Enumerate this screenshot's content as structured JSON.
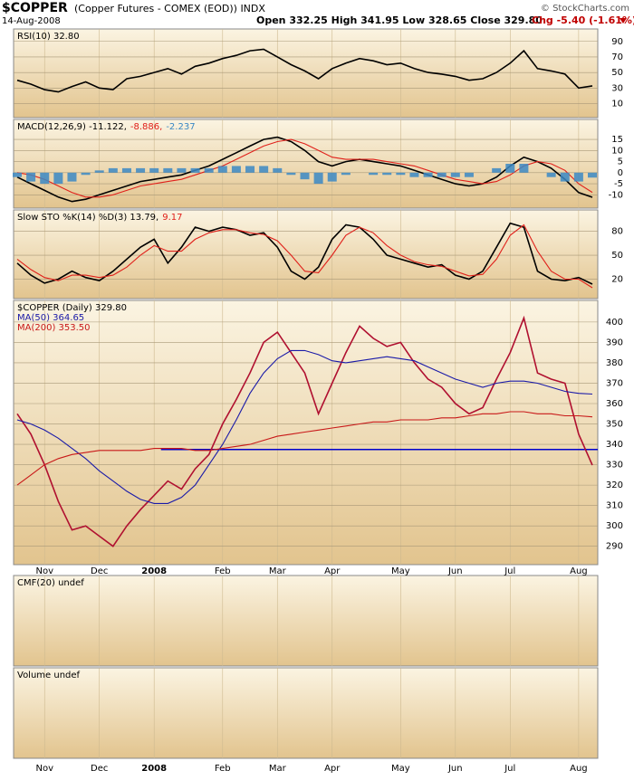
{
  "header": {
    "symbol": "$COPPER",
    "description": "(Copper Futures - COMEX (EOD)) INDX",
    "date": "14-Aug-2008",
    "credit": "© StockCharts.com",
    "quote": "Open 332.25 High 341.95 Low 328.65 Close 329.80",
    "change": "Chg -5.40 (-1.61%)"
  },
  "xticks": [
    {
      "value": 2,
      "label": "Nov"
    },
    {
      "value": 6,
      "label": "Dec"
    },
    {
      "value": 10,
      "label": "2008"
    },
    {
      "value": 15,
      "label": "Feb"
    },
    {
      "value": 19,
      "label": "Mar"
    },
    {
      "value": 23,
      "label": "Apr"
    },
    {
      "value": 28,
      "label": "May"
    },
    {
      "value": 32,
      "label": "Jun"
    },
    {
      "value": 36,
      "label": "Jul"
    },
    {
      "value": 41,
      "label": "Aug"
    }
  ],
  "chart_data": [
    {
      "type": "line",
      "ylim": [
        -8,
        106
      ],
      "yticks": [
        90,
        70,
        50,
        30,
        10
      ],
      "grid": true,
      "series": [
        {
          "name": "RSI(10) 32.80",
          "color": "#000000",
          "values": [
            40,
            35,
            28,
            25,
            32,
            38,
            30,
            28,
            42,
            45,
            50,
            55,
            48,
            58,
            62,
            68,
            72,
            78,
            80,
            70,
            60,
            52,
            42,
            55,
            62,
            68,
            65,
            60,
            62,
            55,
            50,
            48,
            45,
            40,
            42,
            50,
            62,
            78,
            55,
            52,
            48,
            30,
            32.8
          ]
        }
      ]
    },
    {
      "type": "line",
      "ylim": [
        -16,
        24
      ],
      "yticks": [
        15,
        10,
        5,
        0,
        -5,
        -10
      ],
      "grid": true,
      "series": [
        {
          "name": "MACD(12,26,9) -11.122,",
          "color": "#000000",
          "values": [
            -2,
            -5,
            -8,
            -11,
            -13,
            -12,
            -10,
            -8,
            -6,
            -4,
            -3,
            -2,
            -1,
            1,
            3,
            6,
            9,
            12,
            15,
            16,
            14,
            10,
            5,
            3,
            5,
            6,
            5,
            4,
            3,
            1,
            -1,
            -3,
            -5,
            -6,
            -5,
            -2,
            3,
            7,
            5,
            2,
            -3,
            -9,
            -11.122
          ]
        },
        {
          "name": "-8.886,",
          "color": "#e0201a",
          "values": [
            0,
            -1,
            -3,
            -6,
            -9,
            -11,
            -11,
            -10,
            -8,
            -6,
            -5,
            -4,
            -3,
            -1,
            1,
            3,
            6,
            9,
            12,
            14,
            15,
            13,
            10,
            7,
            6,
            6,
            6,
            5,
            4,
            3,
            1,
            -1,
            -3,
            -4,
            -5,
            -4,
            -1,
            3,
            5,
            4,
            1,
            -5,
            -8.886
          ]
        },
        {
          "name": "-2.237",
          "color": "#3b88c4",
          "bar": true,
          "values": [
            -2,
            -4,
            -5,
            -5,
            -4,
            -1,
            1,
            2,
            2,
            2,
            2,
            2,
            2,
            2,
            2,
            3,
            3,
            3,
            3,
            2,
            -1,
            -3,
            -5,
            -4,
            -1,
            0,
            -1,
            -1,
            -1,
            -2,
            -2,
            -2,
            -2,
            -2,
            0,
            2,
            4,
            4,
            0,
            -2,
            -4,
            -4,
            -2.237
          ]
        }
      ]
    },
    {
      "type": "line",
      "ylim": [
        -4.4,
        106.7
      ],
      "yticks": [
        80,
        50,
        20
      ],
      "grid": true,
      "series": [
        {
          "name": "Slow STO %K(14) %D(3) 13.79,",
          "color": "#000000",
          "values": [
            40,
            25,
            15,
            20,
            30,
            22,
            18,
            30,
            45,
            60,
            70,
            40,
            60,
            85,
            80,
            85,
            82,
            75,
            78,
            60,
            30,
            20,
            35,
            70,
            88,
            85,
            70,
            50,
            45,
            40,
            35,
            38,
            25,
            20,
            30,
            60,
            90,
            85,
            30,
            20,
            18,
            22,
            13.79
          ]
        },
        {
          "name": "9.17",
          "color": "#e0201a",
          "values": [
            45,
            32,
            22,
            18,
            25,
            25,
            22,
            25,
            35,
            50,
            62,
            55,
            55,
            70,
            78,
            82,
            82,
            78,
            76,
            68,
            50,
            30,
            28,
            50,
            75,
            85,
            78,
            62,
            50,
            42,
            38,
            36,
            30,
            24,
            26,
            45,
            75,
            88,
            55,
            30,
            20,
            20,
            9.17
          ]
        }
      ]
    },
    {
      "type": "line",
      "ylim": [
        281,
        410.6
      ],
      "yticks": [
        400,
        390,
        380,
        370,
        360,
        350,
        340,
        330,
        320,
        310,
        300,
        290
      ],
      "grid": true,
      "hline": 337.5,
      "hline_color": "#0000cc",
      "series": [
        {
          "name": "$COPPER (Daily) 329.80",
          "color": "#b01030",
          "values": [
            355,
            345,
            330,
            312,
            298,
            300,
            295,
            290,
            300,
            308,
            315,
            322,
            318,
            328,
            335,
            350,
            362,
            375,
            390,
            395,
            385,
            375,
            355,
            370,
            385,
            398,
            392,
            388,
            390,
            380,
            372,
            368,
            360,
            355,
            358,
            372,
            385,
            402,
            375,
            372,
            370,
            345,
            329.8
          ]
        },
        {
          "name": "MA(50) 364.65",
          "color": "#1a1aa8",
          "values": [
            352,
            350,
            347,
            343,
            338,
            333,
            327,
            322,
            317,
            313,
            311,
            311,
            314,
            320,
            330,
            340,
            352,
            365,
            375,
            382,
            386,
            386,
            384,
            381,
            380,
            381,
            382,
            383,
            382,
            381,
            378,
            375,
            372,
            370,
            368,
            370,
            371,
            371,
            370,
            368,
            366,
            365,
            364.65
          ]
        },
        {
          "name": "MA(200) 353.50",
          "color": "#c81818",
          "values": [
            320,
            325,
            330,
            333,
            335,
            336,
            337,
            337,
            337,
            337,
            338,
            338,
            338,
            337,
            337,
            338,
            339,
            340,
            342,
            344,
            345,
            346,
            347,
            348,
            349,
            350,
            351,
            351,
            352,
            352,
            352,
            353,
            353,
            354,
            355,
            355,
            356,
            356,
            355,
            355,
            354,
            354,
            353.5
          ]
        }
      ]
    },
    {
      "type": "empty",
      "title": "CMF(20) undef"
    },
    {
      "type": "empty",
      "title": "Volume undef"
    }
  ]
}
